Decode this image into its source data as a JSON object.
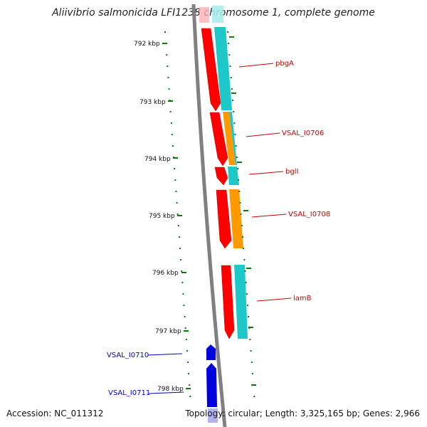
{
  "title": "Aliivibrio salmonicida LFI1238 chromosome 1, complete genome",
  "accession": "Accession: NC_011312",
  "summary": "Topology: circular; Length: 3,325,165 bp; Genes: 2,966",
  "colors": {
    "backbone": "#808080",
    "gene_forward": "#0000dd",
    "gene_reverse": "#ff0000",
    "cds_cyan": "#1ec8c8",
    "cds_orange": "#ff9900",
    "label_red": "#cc0000",
    "label_blue": "#0000cc",
    "ticks": "#0a7a0a"
  },
  "scale_ticks": [
    "792 kbp",
    "793 kbp",
    "794 kbp",
    "795 kbp",
    "796 kbp",
    "797 kbp",
    "798 kbp"
  ],
  "gene_labels": [
    {
      "text": "pbgA",
      "strand": "reverse"
    },
    {
      "text": "VSAL_I0706",
      "strand": "reverse"
    },
    {
      "text": "bglI",
      "strand": "reverse"
    },
    {
      "text": "VSAL_I0708",
      "strand": "reverse"
    },
    {
      "text": "lamB",
      "strand": "reverse"
    },
    {
      "text": "VSAL_I0710",
      "strand": "forward"
    },
    {
      "text": "VSAL_I0711",
      "strand": "forward"
    }
  ]
}
